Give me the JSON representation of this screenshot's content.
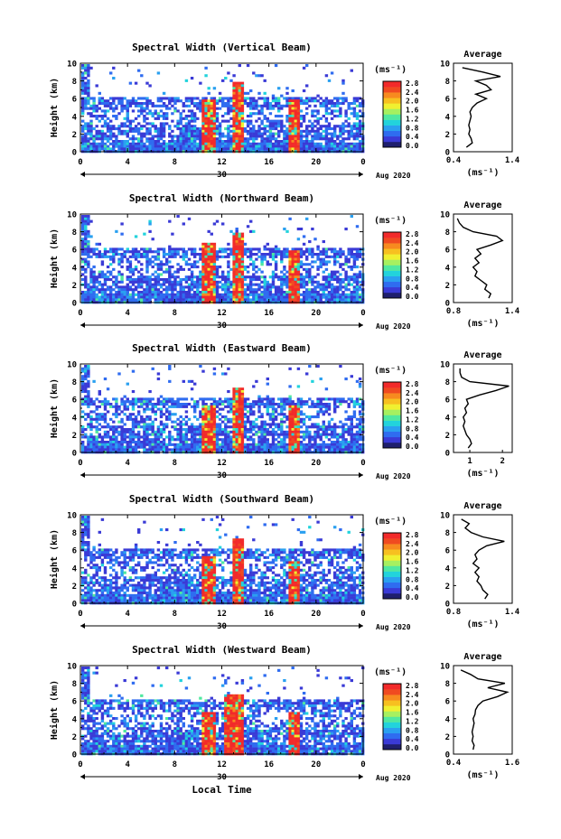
{
  "figure": {
    "xlabel": "Local Time",
    "date_label": "Aug 2020",
    "day_label": "30",
    "colorbar_unit": "(ms⁻¹)",
    "colorbar_ticks": [
      "0.0",
      "0.4",
      "0.8",
      "1.2",
      "1.6",
      "2.0",
      "2.4",
      "2.8"
    ],
    "profile_title": "Average",
    "profile_xlabel": "(ms⁻¹)",
    "ylabel": "Height (km)",
    "colors": [
      "#1f1f6e",
      "#3a3ad6",
      "#2f6cf0",
      "#2aa0f0",
      "#22d3dc",
      "#50e8a0",
      "#a6f060",
      "#f0f030",
      "#f7c020",
      "#f78a1f",
      "#f04a20",
      "#f22a2a"
    ]
  },
  "chart_data": [
    {
      "type": "heatmap",
      "title": "Spectral Width (Vertical Beam)",
      "xlabel": "Local Time",
      "ylabel": "Height (km)",
      "xlim": [
        0,
        24
      ],
      "ylim": [
        0,
        10
      ],
      "xticks": [
        "0",
        "4",
        "8",
        "12",
        "16",
        "20",
        "0"
      ],
      "yticks": [
        "0",
        "2",
        "4",
        "6",
        "8",
        "10"
      ],
      "colorbar": {
        "label": "(ms⁻¹)",
        "range": [
          0.0,
          2.8
        ]
      },
      "events": [
        {
          "t": [
            10.2,
            11.4
          ],
          "top_km": 6.0,
          "level": "high"
        },
        {
          "t": [
            12.8,
            13.8
          ],
          "top_km": 8.0,
          "level": "high"
        },
        {
          "t": [
            17.5,
            18.4
          ],
          "top_km": 6.0,
          "level": "high"
        }
      ],
      "average_profile": {
        "title": "Average",
        "xlabel": "(ms⁻¹)",
        "xlim": [
          0.4,
          1.4
        ],
        "xticks": [
          "0.4",
          "1.4"
        ],
        "height_km": [
          0.5,
          1,
          1.5,
          2,
          2.5,
          3,
          3.5,
          4,
          4.5,
          5,
          5.5,
          6,
          6.5,
          7,
          7.5,
          8,
          8.5,
          9,
          9.5
        ],
        "values": [
          0.62,
          0.72,
          0.7,
          0.66,
          0.68,
          0.66,
          0.68,
          0.7,
          0.68,
          0.72,
          0.8,
          0.96,
          0.78,
          1.04,
          0.96,
          0.78,
          1.2,
          0.9,
          0.55
        ]
      }
    },
    {
      "type": "heatmap",
      "title": "Spectral Width (Northward Beam)",
      "xlabel": "Local Time",
      "ylabel": "Height (km)",
      "xlim": [
        0,
        24
      ],
      "ylim": [
        0,
        10
      ],
      "xticks": [
        "0",
        "4",
        "8",
        "12",
        "16",
        "20",
        "0"
      ],
      "yticks": [
        "0",
        "2",
        "4",
        "6",
        "8",
        "10"
      ],
      "colorbar": {
        "label": "(ms⁻¹)",
        "range": [
          0.0,
          2.8
        ]
      },
      "events": [
        {
          "t": [
            10.2,
            11.4
          ],
          "top_km": 7.0,
          "level": "high"
        },
        {
          "t": [
            12.8,
            13.8
          ],
          "top_km": 8.0,
          "level": "high"
        },
        {
          "t": [
            17.5,
            18.4
          ],
          "top_km": 6.0,
          "level": "high"
        }
      ],
      "average_profile": {
        "title": "Average",
        "xlabel": "(ms⁻¹)",
        "xlim": [
          0.8,
          1.4
        ],
        "xticks": [
          "0.8",
          "1.4"
        ],
        "height_km": [
          0.5,
          1,
          1.5,
          2,
          2.5,
          3,
          3.5,
          4,
          4.5,
          5,
          5.5,
          6,
          6.5,
          7,
          7.5,
          8,
          8.5,
          9,
          9.5
        ],
        "values": [
          1.16,
          1.18,
          1.12,
          1.14,
          1.08,
          1.02,
          1.04,
          1.0,
          1.06,
          1.02,
          1.08,
          1.04,
          1.18,
          1.3,
          1.24,
          1.0,
          0.9,
          0.86,
          0.84
        ]
      }
    },
    {
      "type": "heatmap",
      "title": "Spectral Width (Eastward Beam)",
      "xlabel": "Local Time",
      "ylabel": "Height (km)",
      "xlim": [
        0,
        24
      ],
      "ylim": [
        0,
        10
      ],
      "xticks": [
        "0",
        "4",
        "8",
        "12",
        "16",
        "20",
        "0"
      ],
      "yticks": [
        "0",
        "2",
        "4",
        "6",
        "8",
        "10"
      ],
      "colorbar": {
        "label": "(ms⁻¹)",
        "range": [
          0.0,
          2.8
        ]
      },
      "events": [
        {
          "t": [
            10.2,
            11.4
          ],
          "top_km": 5.5,
          "level": "high"
        },
        {
          "t": [
            12.8,
            13.8
          ],
          "top_km": 7.5,
          "level": "high"
        },
        {
          "t": [
            17.5,
            18.4
          ],
          "top_km": 5.5,
          "level": "high"
        }
      ],
      "average_profile": {
        "title": "Average",
        "xlabel": "(ms⁻¹)",
        "xlim": [
          0.5,
          2.3
        ],
        "xticks": [
          "1",
          "2"
        ],
        "height_km": [
          0.5,
          1,
          1.5,
          2,
          2.5,
          3,
          3.5,
          4,
          4.5,
          5,
          5.5,
          6,
          6.5,
          7,
          7.5,
          8,
          8.5,
          9,
          9.5
        ],
        "values": [
          0.95,
          1.05,
          1.0,
          0.9,
          0.85,
          0.8,
          0.85,
          0.8,
          0.9,
          0.85,
          0.95,
          0.9,
          1.3,
          1.8,
          2.2,
          1.0,
          0.75,
          0.7,
          0.7
        ]
      }
    },
    {
      "type": "heatmap",
      "title": "Spectral Width (Southward Beam)",
      "xlabel": "Local Time",
      "ylabel": "Height (km)",
      "xlim": [
        0,
        24
      ],
      "ylim": [
        0,
        10
      ],
      "xticks": [
        "0",
        "4",
        "8",
        "12",
        "16",
        "20",
        "0"
      ],
      "yticks": [
        "0",
        "2",
        "4",
        "6",
        "8",
        "10"
      ],
      "colorbar": {
        "label": "(ms⁻¹)",
        "range": [
          0.0,
          2.8
        ]
      },
      "events": [
        {
          "t": [
            10.2,
            11.4
          ],
          "top_km": 5.5,
          "level": "high"
        },
        {
          "t": [
            12.8,
            13.8
          ],
          "top_km": 7.5,
          "level": "high"
        },
        {
          "t": [
            17.5,
            18.4
          ],
          "top_km": 5.0,
          "level": "high"
        }
      ],
      "average_profile": {
        "title": "Average",
        "xlabel": "(ms⁻¹)",
        "xlim": [
          0.8,
          1.4
        ],
        "xticks": [
          "0.8",
          "1.4"
        ],
        "height_km": [
          0.5,
          1,
          1.5,
          2,
          2.5,
          3,
          3.5,
          4,
          4.5,
          5,
          5.5,
          6,
          6.5,
          7,
          7.5,
          8,
          8.5,
          9,
          9.5
        ],
        "values": [
          1.12,
          1.15,
          1.1,
          1.08,
          1.04,
          1.06,
          1.02,
          1.06,
          1.0,
          1.04,
          1.02,
          1.06,
          1.14,
          1.32,
          1.1,
          0.98,
          0.92,
          0.96,
          0.88
        ]
      }
    },
    {
      "type": "heatmap",
      "title": "Spectral Width (Westward Beam)",
      "xlabel": "Local Time",
      "ylabel": "Height (km)",
      "xlim": [
        0,
        24
      ],
      "ylim": [
        0,
        10
      ],
      "xticks": [
        "0",
        "4",
        "8",
        "12",
        "16",
        "20",
        "0"
      ],
      "yticks": [
        "0",
        "2",
        "4",
        "6",
        "8",
        "10"
      ],
      "colorbar": {
        "label": "(ms⁻¹)",
        "range": [
          0.0,
          2.8
        ]
      },
      "events": [
        {
          "t": [
            10.2,
            11.4
          ],
          "top_km": 5.0,
          "level": "high"
        },
        {
          "t": [
            12.0,
            13.8
          ],
          "top_km": 7.0,
          "level": "high"
        },
        {
          "t": [
            17.5,
            18.4
          ],
          "top_km": 5.0,
          "level": "high"
        }
      ],
      "average_profile": {
        "title": "Average",
        "xlabel": "(ms⁻¹)",
        "xlim": [
          0.4,
          1.6
        ],
        "xticks": [
          "0.4",
          "1.6"
        ],
        "height_km": [
          0.5,
          1,
          1.5,
          2,
          2.5,
          3,
          3.5,
          4,
          4.5,
          5,
          5.5,
          6,
          6.5,
          7,
          7.5,
          8,
          8.5,
          9,
          9.5
        ],
        "values": [
          0.8,
          0.82,
          0.78,
          0.8,
          0.78,
          0.8,
          0.82,
          0.8,
          0.84,
          0.85,
          0.9,
          1.0,
          1.3,
          1.5,
          1.1,
          1.45,
          0.9,
          0.75,
          0.55
        ]
      }
    }
  ]
}
